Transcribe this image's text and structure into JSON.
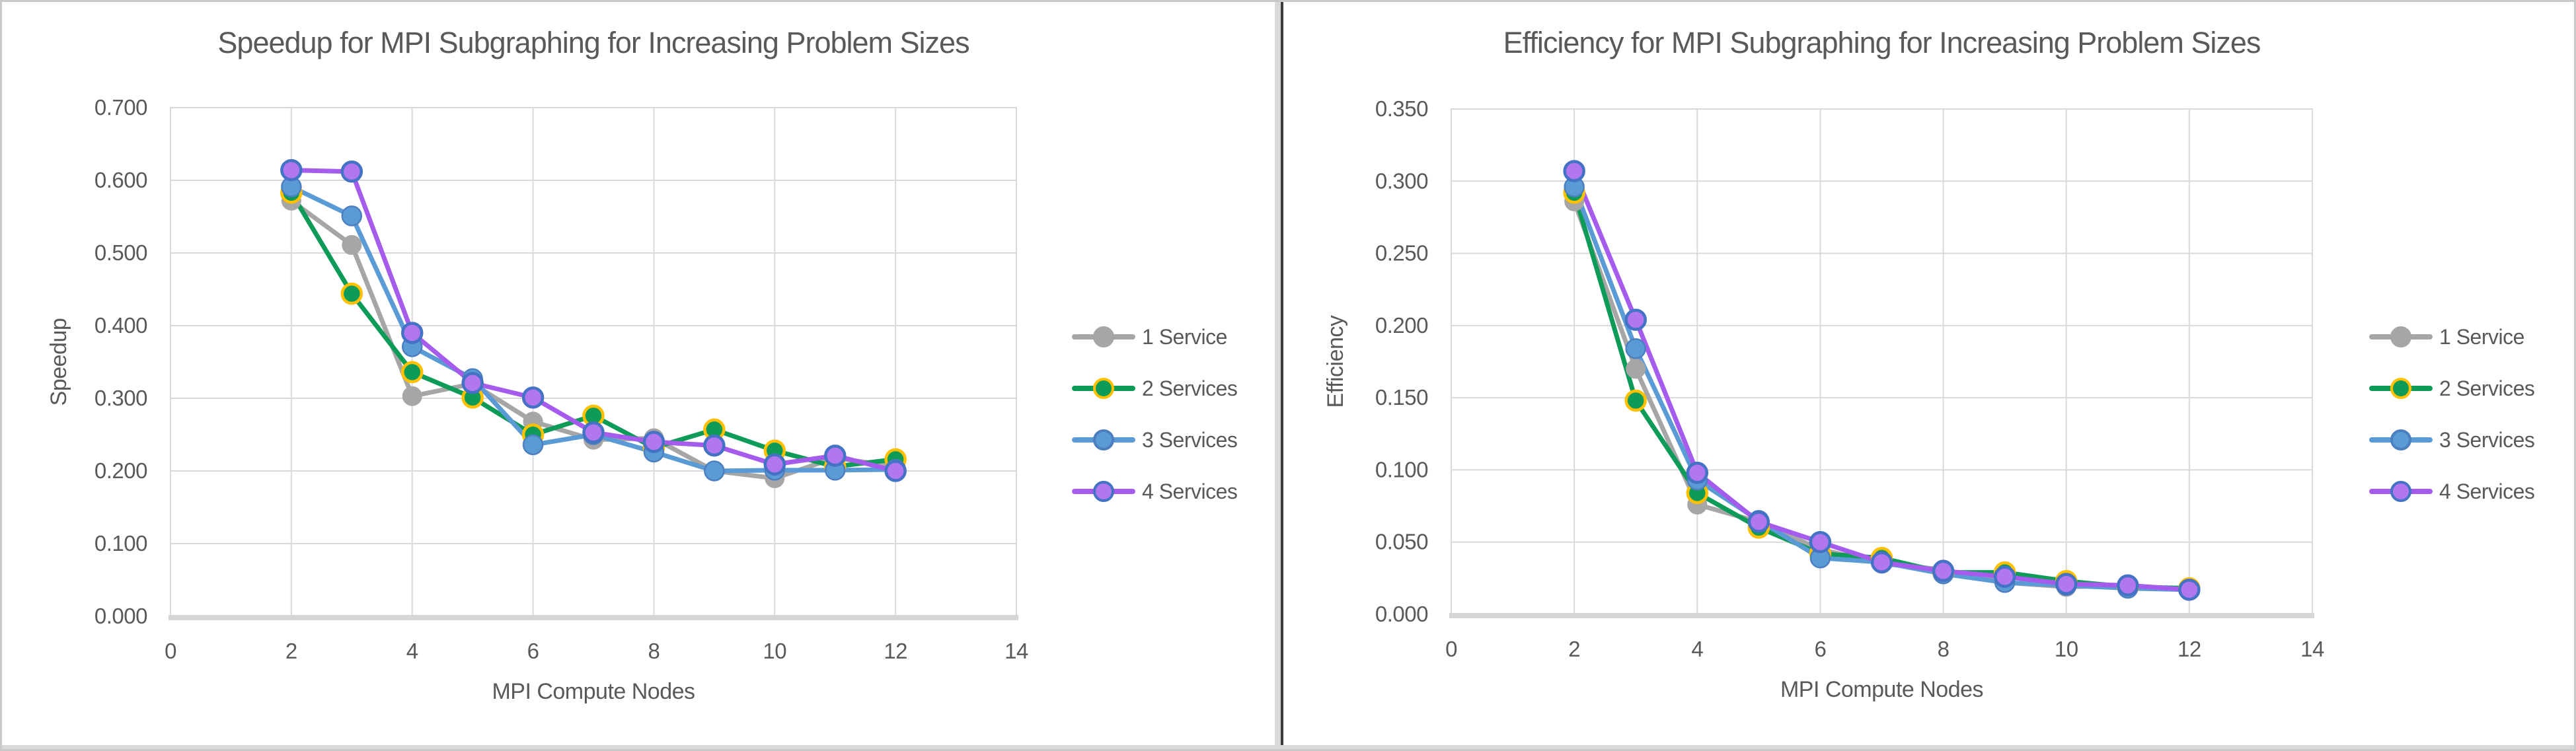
{
  "colors": {
    "background": "#ffffff",
    "frame_border": "#c9c9c9",
    "divider_dark": "#3b3b3b",
    "divider_light": "#d9d9d9",
    "bottom_strip": "#d8d8d8",
    "text": "#595959",
    "gridline": "#d9d9d9",
    "axis_bar": "#d6d6d6"
  },
  "chart_data": [
    {
      "type": "line",
      "title": "Speedup for MPI Subgraphing for Increasing Problem Sizes",
      "xlabel": "MPI Compute Nodes",
      "ylabel": "Speedup",
      "xlim": [
        0,
        14
      ],
      "ylim": [
        0,
        0.7
      ],
      "grid": true,
      "legend_position": "right",
      "x_ticks": [
        "0",
        "2",
        "4",
        "6",
        "8",
        "10",
        "12",
        "14"
      ],
      "y_ticks": [
        "0.000",
        "0.100",
        "0.200",
        "0.300",
        "0.400",
        "0.500",
        "0.600",
        "0.700"
      ],
      "x": [
        2,
        3,
        4,
        5,
        6,
        7,
        8,
        9,
        10,
        11,
        12
      ],
      "series": [
        {
          "name": "1 Service",
          "color": "#a6a6a6",
          "marker_fill": "#a6a6a6",
          "marker_ring": "#a6a6a6",
          "marker_ring_width": 0,
          "values": [
            0.572,
            0.511,
            0.303,
            0.32,
            0.268,
            0.243,
            0.245,
            0.2,
            0.19,
            0.218,
            0.206
          ]
        },
        {
          "name": "2 Services",
          "color": "#0e9b57",
          "marker_fill": "#0e9b57",
          "marker_ring": "#ffc000",
          "marker_ring_width": 4.5,
          "values": [
            0.583,
            0.444,
            0.336,
            0.301,
            0.25,
            0.276,
            0.232,
            0.257,
            0.228,
            0.206,
            0.216
          ]
        },
        {
          "name": "3 Services",
          "color": "#5b9bd5",
          "marker_fill": "#5b9bd5",
          "marker_ring": "#4c7fc0",
          "marker_ring_width": 2.5,
          "values": [
            0.591,
            0.551,
            0.371,
            0.327,
            0.236,
            0.25,
            0.226,
            0.2,
            0.201,
            0.201,
            0.202
          ]
        },
        {
          "name": "4 Services",
          "color": "#a55cec",
          "marker_fill": "#b077ef",
          "marker_ring": "#4472c4",
          "marker_ring_width": 4.5,
          "values": [
            0.614,
            0.612,
            0.39,
            0.321,
            0.301,
            0.253,
            0.24,
            0.235,
            0.209,
            0.221,
            0.2
          ]
        }
      ]
    },
    {
      "type": "line",
      "title": "Efficiency for MPI Subgraphing for Increasing Problem Sizes",
      "xlabel": "MPI Compute Nodes",
      "ylabel": "Efficiency",
      "xlim": [
        0,
        14
      ],
      "ylim": [
        0,
        0.35
      ],
      "grid": true,
      "legend_position": "right",
      "x_ticks": [
        "0",
        "2",
        "4",
        "6",
        "8",
        "10",
        "12",
        "14"
      ],
      "y_ticks": [
        "0.000",
        "0.050",
        "0.100",
        "0.150",
        "0.200",
        "0.250",
        "0.300",
        "0.350"
      ],
      "x": [
        2,
        3,
        4,
        5,
        6,
        7,
        8,
        9,
        10,
        11,
        12
      ],
      "series": [
        {
          "name": "1 Service",
          "color": "#a6a6a6",
          "marker_fill": "#a6a6a6",
          "marker_ring": "#a6a6a6",
          "marker_ring_width": 0,
          "values": [
            0.286,
            0.17,
            0.076,
            0.064,
            0.045,
            0.035,
            0.031,
            0.022,
            0.019,
            0.02,
            0.017
          ]
        },
        {
          "name": "2 Services",
          "color": "#0e9b57",
          "marker_fill": "#0e9b57",
          "marker_ring": "#ffc000",
          "marker_ring_width": 4.5,
          "values": [
            0.292,
            0.148,
            0.084,
            0.06,
            0.042,
            0.039,
            0.029,
            0.029,
            0.023,
            0.019,
            0.018
          ]
        },
        {
          "name": "3 Services",
          "color": "#5b9bd5",
          "marker_fill": "#5b9bd5",
          "marker_ring": "#4c7fc0",
          "marker_ring_width": 2.5,
          "values": [
            0.296,
            0.184,
            0.093,
            0.065,
            0.039,
            0.036,
            0.028,
            0.022,
            0.02,
            0.018,
            0.017
          ]
        },
        {
          "name": "4 Services",
          "color": "#a55cec",
          "marker_fill": "#b077ef",
          "marker_ring": "#4472c4",
          "marker_ring_width": 4.5,
          "values": [
            0.307,
            0.204,
            0.098,
            0.064,
            0.05,
            0.036,
            0.03,
            0.026,
            0.021,
            0.02,
            0.017
          ]
        }
      ]
    }
  ]
}
